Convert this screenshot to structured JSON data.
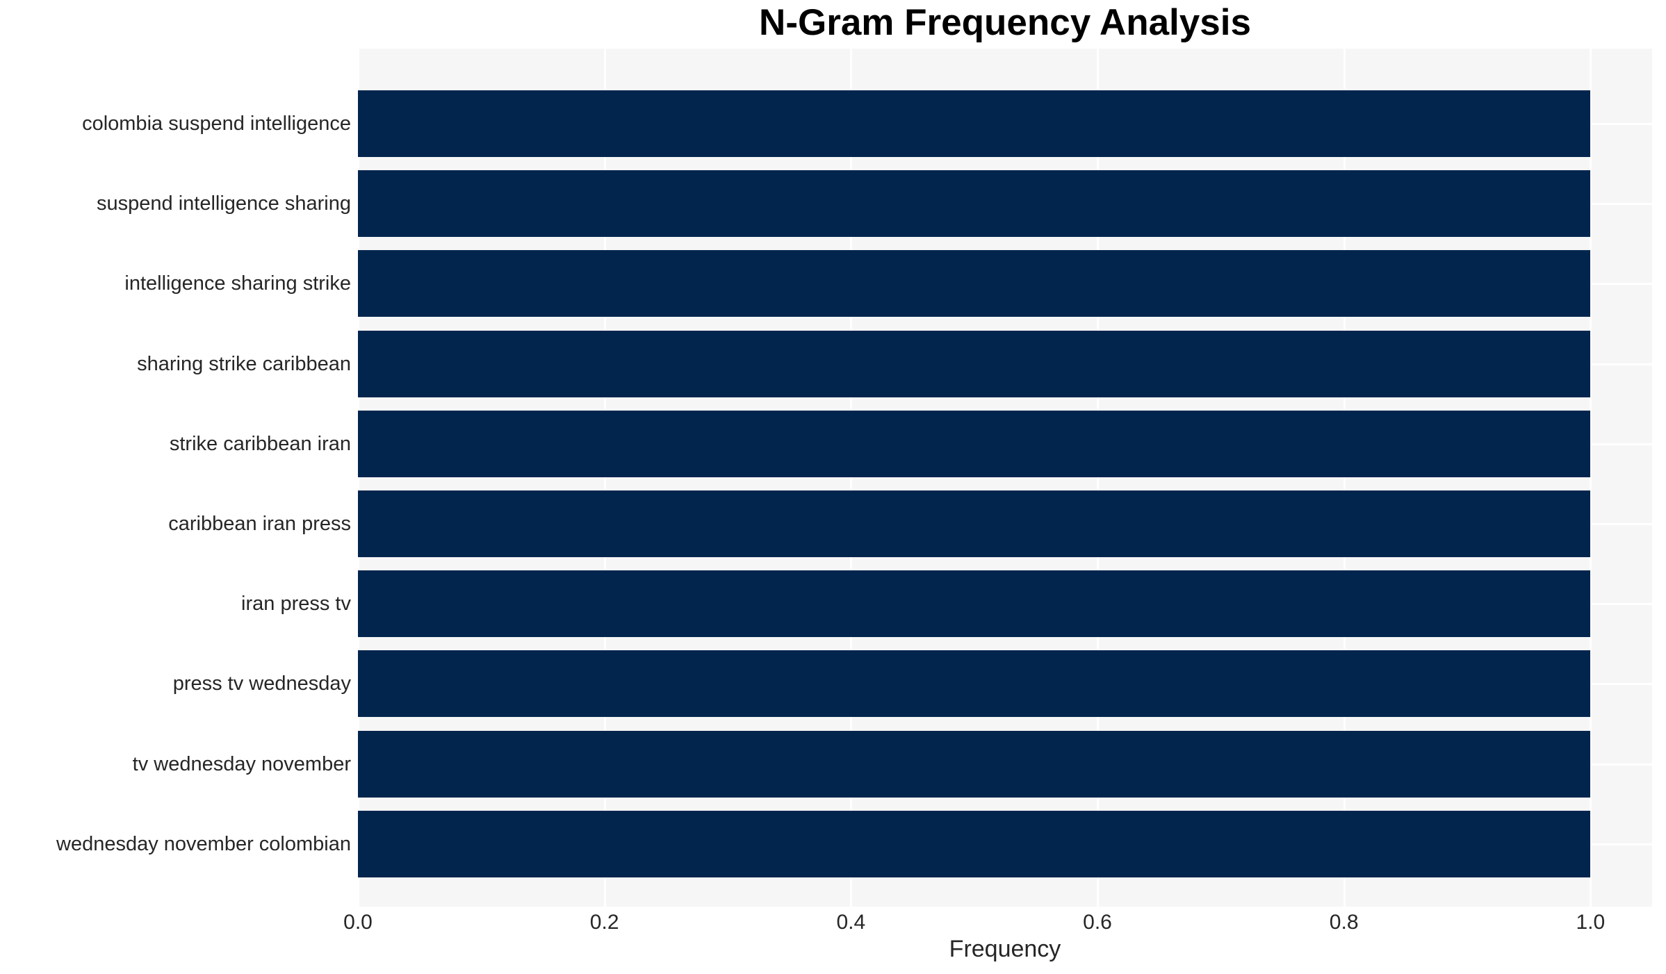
{
  "chart_data": {
    "type": "bar",
    "orientation": "horizontal",
    "title": "N-Gram Frequency Analysis",
    "xlabel": "Frequency",
    "ylabel": "",
    "categories": [
      "colombia suspend intelligence",
      "suspend intelligence sharing",
      "intelligence sharing strike",
      "sharing strike caribbean",
      "strike caribbean iran",
      "caribbean iran press",
      "iran press tv",
      "press tv wednesday",
      "tv wednesday november",
      "wednesday november colombian"
    ],
    "values": [
      1.0,
      1.0,
      1.0,
      1.0,
      1.0,
      1.0,
      1.0,
      1.0,
      1.0,
      1.0
    ],
    "xlim": [
      0,
      1.05
    ],
    "xticks": [
      "0.0",
      "0.2",
      "0.4",
      "0.6",
      "0.8",
      "1.0"
    ],
    "xtick_values": [
      0.0,
      0.2,
      0.4,
      0.6,
      0.8,
      1.0
    ],
    "grid": true,
    "legend": "none",
    "bar_color": "#02254e",
    "plot_background": "#f6f6f6",
    "gridline_color": "#ffffff",
    "text_color": "#262626",
    "title_color": "#000000"
  }
}
